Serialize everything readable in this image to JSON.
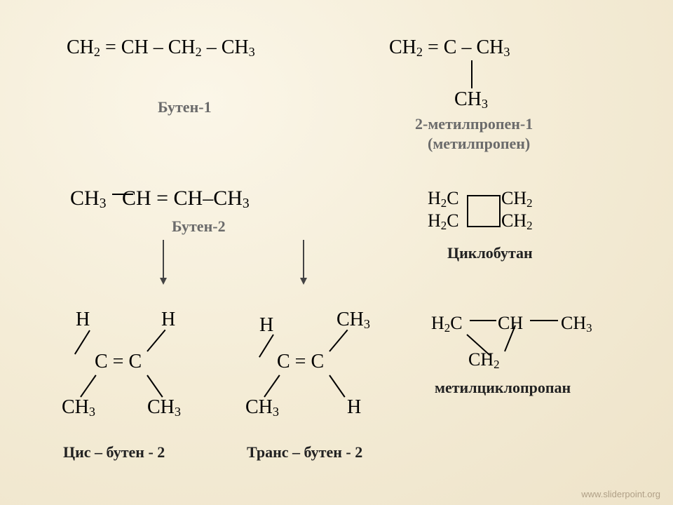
{
  "butene1": {
    "formula_html": "CH<sub>2</sub> = CH – CH<sub>2</sub> – CH<sub>3</sub>",
    "label": "Бутен-1"
  },
  "methylpropene": {
    "line1_html": "CH<sub>2</sub> = C – CH<sub>3</sub>",
    "branch_html": "CH<sub>3</sub>",
    "label_line1": "2-метилпропен-1",
    "label_line2": "(метилпропен)"
  },
  "butene2": {
    "formula_html": "CH<sub>3</sub>&nbsp;&nbsp;&nbsp;CH = CH–CH<sub>3</sub>",
    "label": "Бутен-2"
  },
  "cyclobutane": {
    "tl_html": "H<sub>2</sub>C",
    "tr_html": "CH<sub>2</sub>",
    "bl_html": "H<sub>2</sub>C",
    "br_html": "CH<sub>2</sub>",
    "label": "Циклобутан"
  },
  "cis": {
    "H": "H",
    "center": "C = C",
    "CH3_html": "CH<sub>3</sub>",
    "label": "Цис – бутен - 2"
  },
  "trans": {
    "H": "H",
    "center": "C = C",
    "CH3_html": "CH<sub>3</sub>",
    "label": "Транс – бутен - 2"
  },
  "methylcyclopropane": {
    "top_left_html": "H<sub>2</sub>C",
    "top_mid_html": "CH",
    "top_right_html": "CH<sub>3</sub>",
    "bottom_html": "CH<sub>2</sub>",
    "label": "метилциклопропан"
  },
  "footer": "www.sliderpoint.org",
  "colors": {
    "text": "#000000",
    "label_gray": "#6b6b6b",
    "bg_light": "#fbf6e8",
    "bg_mid": "#f4ecd6",
    "bg_dark": "#eee3c9"
  }
}
